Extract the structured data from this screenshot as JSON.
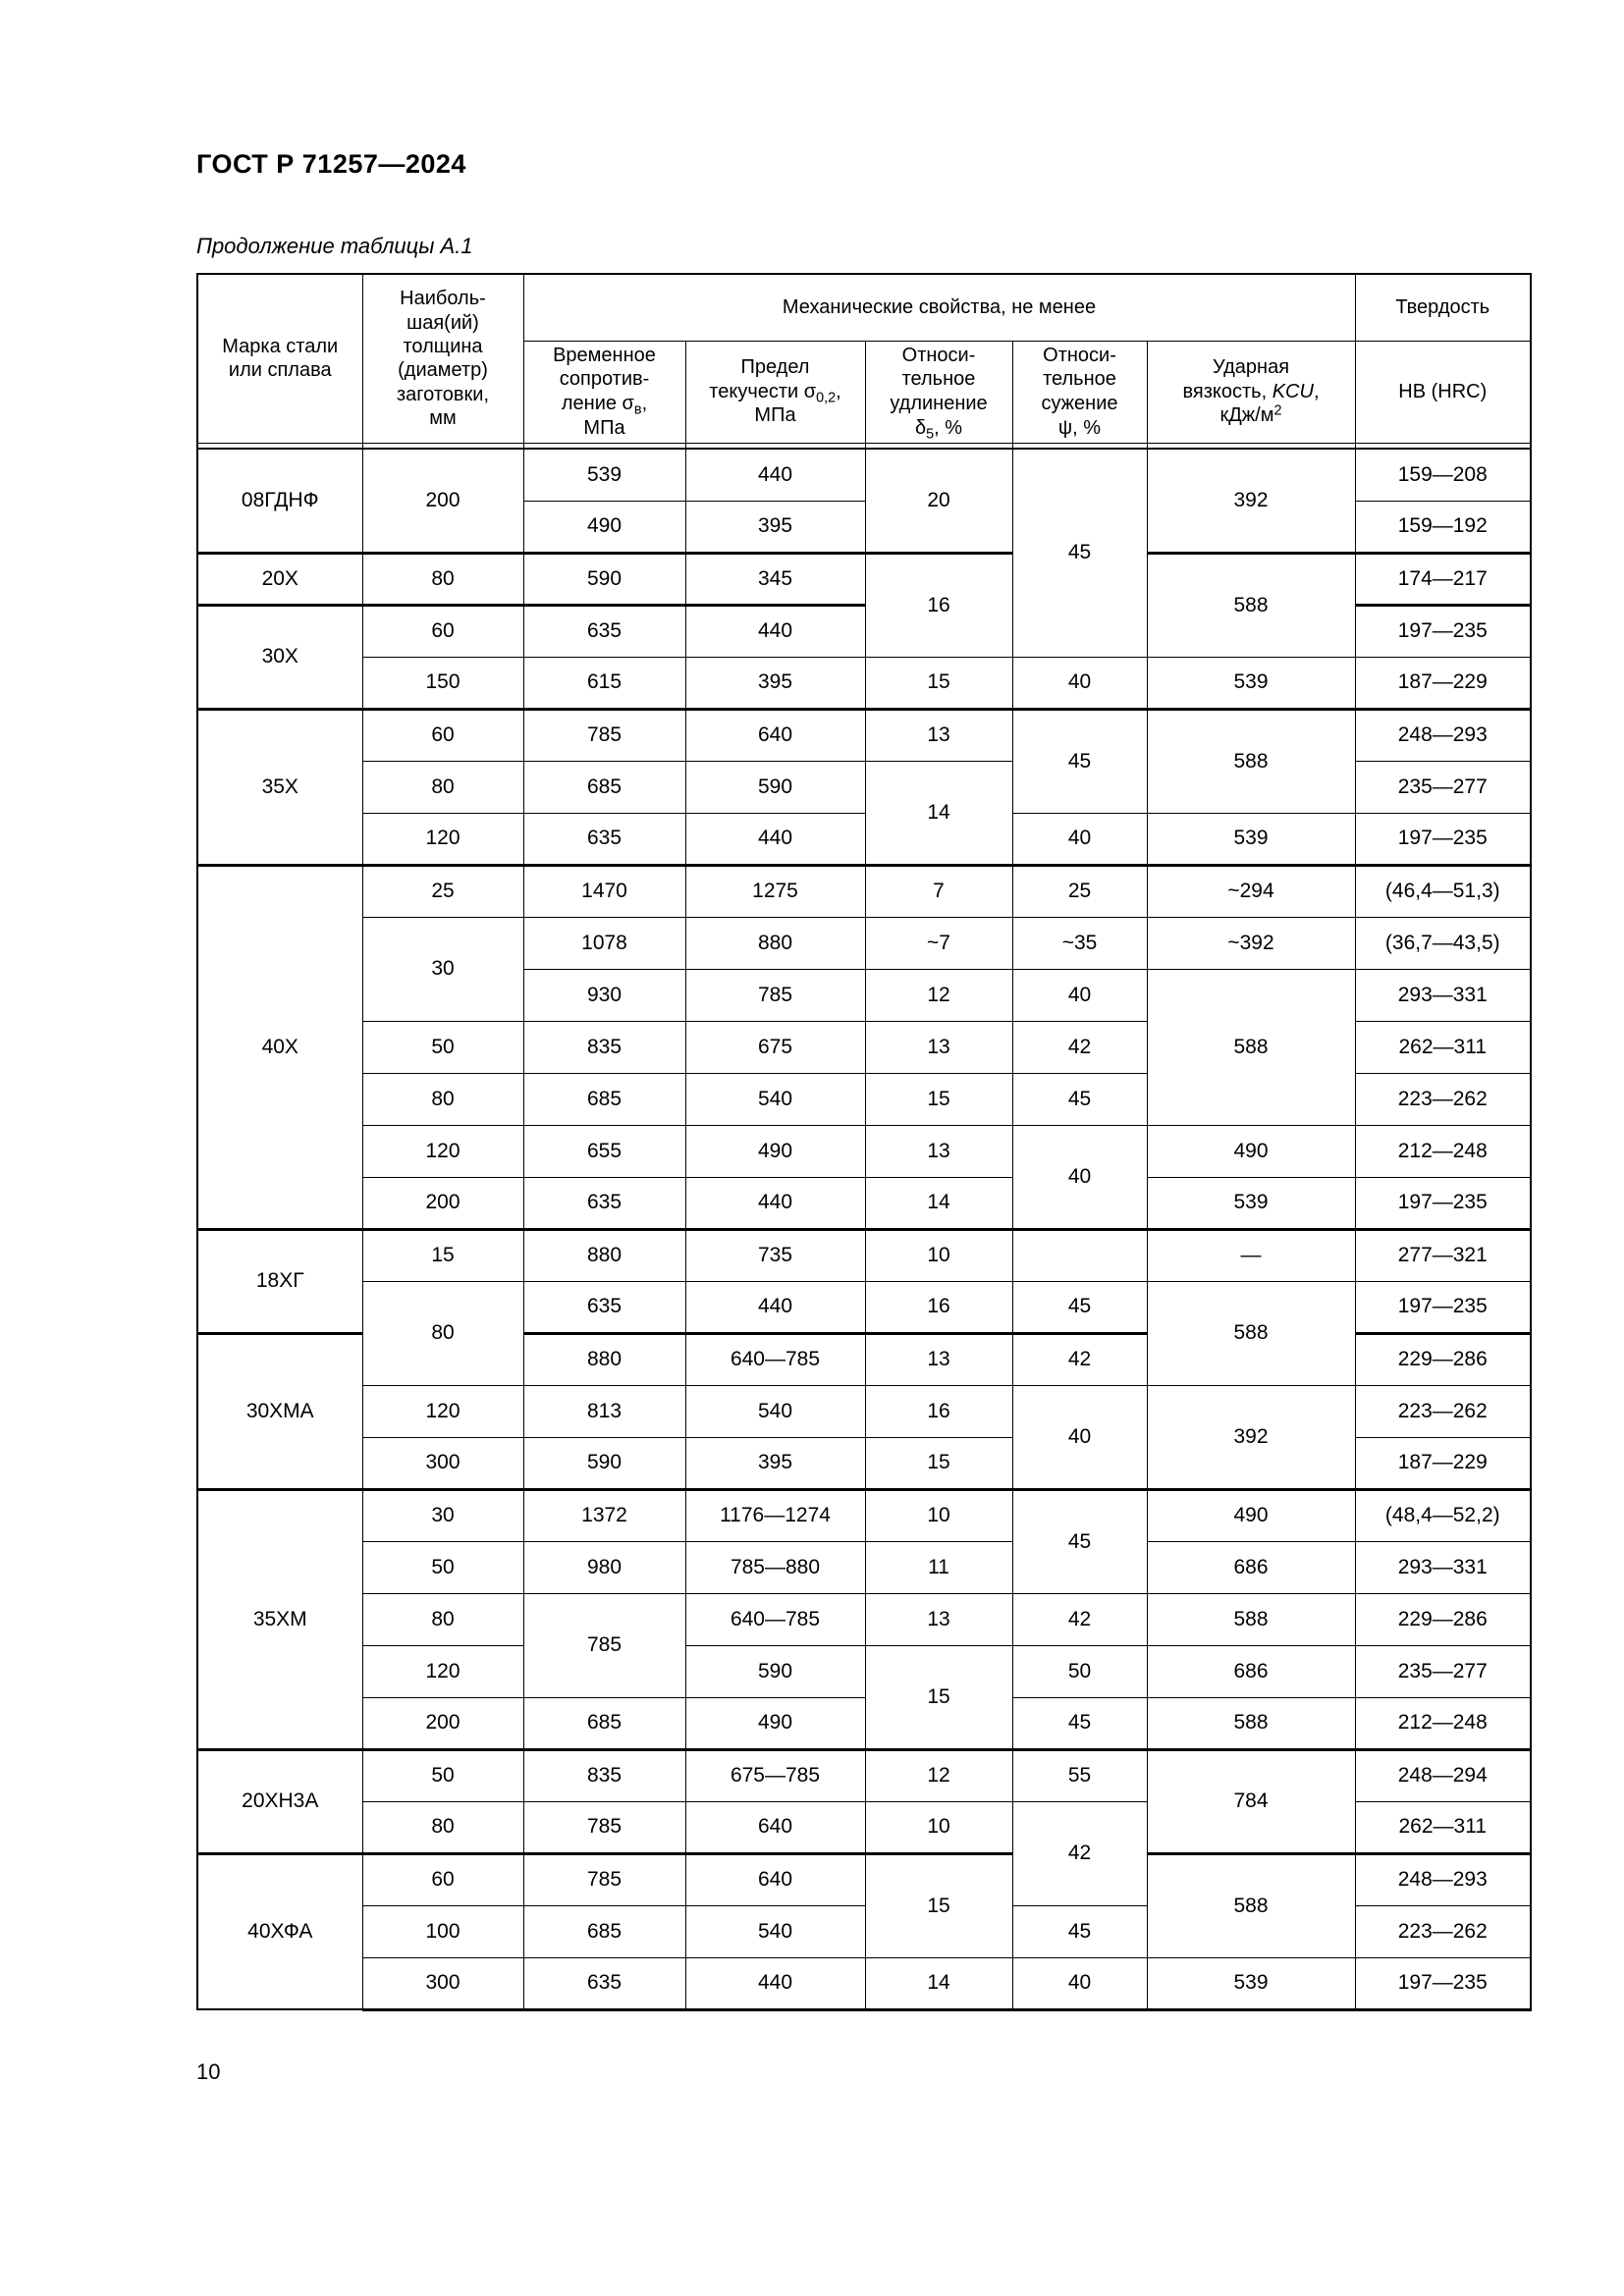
{
  "doc": {
    "title": "ГОСТ Р 71257—2024",
    "caption": "Продолжение таблицы А.1",
    "page_number": "10"
  },
  "header": {
    "col_marka": "Марка стали\nили сплава",
    "col_thickness": "Наиболь-\nшая(ий)\nтолщина\n(диаметр)\nзаготовки,\nмм",
    "mech_props": "Механические свойства, не менее",
    "hardness": "Твердость",
    "sigma_v": {
      "t1": "Временное\nсопротив-\nление σ",
      "sub": "в",
      "t2": ",\nМПа"
    },
    "sigma_02": {
      "t1": "Предел\nтекучести σ",
      "sub": "0,2",
      "t2": ",\nМПа"
    },
    "delta": {
      "t1": "Относи-\nтельное\nудлинение\nδ",
      "sub": "5",
      "t2": ", %"
    },
    "psi": {
      "t1": "Относи-\nтельное\nсужение\nψ, %"
    },
    "kcu": {
      "t1": "Ударная\nвязкость, ",
      "it": "KCU",
      "t2": ",\nкДж/м",
      "sup": "2"
    },
    "hb": "НВ (HRC)"
  },
  "table": {
    "rows": [
      {
        "cells": [
          {
            "v": "08ГДНФ",
            "rs": 2
          },
          {
            "v": "200",
            "rs": 2
          },
          {
            "v": "539"
          },
          {
            "v": "440"
          },
          {
            "v": "20",
            "rs": 2
          },
          {
            "v": "45",
            "rs": 4
          },
          {
            "v": "392",
            "rs": 2
          },
          {
            "v": "159—208"
          }
        ]
      },
      {
        "cells": [
          {
            "v": "490"
          },
          {
            "v": "395"
          },
          {
            "v": "159—192"
          }
        ]
      },
      {
        "sep": true,
        "cells": [
          {
            "v": "20Х"
          },
          {
            "v": "80"
          },
          {
            "v": "590"
          },
          {
            "v": "345"
          },
          {
            "v": "16",
            "rs": 2
          },
          {
            "v": "588",
            "rs": 2
          },
          {
            "v": "174—217"
          }
        ]
      },
      {
        "sep": true,
        "cells": [
          {
            "v": "30Х",
            "rs": 2
          },
          {
            "v": "60"
          },
          {
            "v": "635"
          },
          {
            "v": "440"
          },
          {
            "v": "197—235"
          }
        ]
      },
      {
        "cells": [
          {
            "v": "150"
          },
          {
            "v": "615"
          },
          {
            "v": "395"
          },
          {
            "v": "15"
          },
          {
            "v": "40"
          },
          {
            "v": "539"
          },
          {
            "v": "187—229"
          }
        ]
      },
      {
        "sep": true,
        "cells": [
          {
            "v": "35Х",
            "rs": 3
          },
          {
            "v": "60"
          },
          {
            "v": "785"
          },
          {
            "v": "640"
          },
          {
            "v": "13"
          },
          {
            "v": "45",
            "rs": 2
          },
          {
            "v": "588",
            "rs": 2
          },
          {
            "v": "248—293"
          }
        ]
      },
      {
        "cells": [
          {
            "v": "80"
          },
          {
            "v": "685"
          },
          {
            "v": "590"
          },
          {
            "v": "14",
            "rs": 2
          },
          {
            "v": "235—277"
          }
        ]
      },
      {
        "cells": [
          {
            "v": "120"
          },
          {
            "v": "635"
          },
          {
            "v": "440"
          },
          {
            "v": "40"
          },
          {
            "v": "539"
          },
          {
            "v": "197—235"
          }
        ]
      },
      {
        "sep": true,
        "cells": [
          {
            "v": "40Х",
            "rs": 7
          },
          {
            "v": "25"
          },
          {
            "v": "1470"
          },
          {
            "v": "1275"
          },
          {
            "v": "7"
          },
          {
            "v": "25"
          },
          {
            "v": "~294"
          },
          {
            "v": "(46,4—51,3)"
          }
        ]
      },
      {
        "cells": [
          {
            "v": "30",
            "rs": 2
          },
          {
            "v": "1078"
          },
          {
            "v": "880"
          },
          {
            "v": "~7"
          },
          {
            "v": "~35"
          },
          {
            "v": "~392"
          },
          {
            "v": "(36,7—43,5)"
          }
        ]
      },
      {
        "cells": [
          {
            "v": "930"
          },
          {
            "v": "785"
          },
          {
            "v": "12"
          },
          {
            "v": "40"
          },
          {
            "v": "588",
            "rs": 3
          },
          {
            "v": "293—331"
          }
        ]
      },
      {
        "cells": [
          {
            "v": "50"
          },
          {
            "v": "835"
          },
          {
            "v": "675"
          },
          {
            "v": "13"
          },
          {
            "v": "42"
          },
          {
            "v": "262—311"
          }
        ]
      },
      {
        "cells": [
          {
            "v": "80"
          },
          {
            "v": "685"
          },
          {
            "v": "540"
          },
          {
            "v": "15"
          },
          {
            "v": "45"
          },
          {
            "v": "223—262"
          }
        ]
      },
      {
        "cells": [
          {
            "v": "120"
          },
          {
            "v": "655"
          },
          {
            "v": "490"
          },
          {
            "v": "13"
          },
          {
            "v": "40",
            "rs": 2
          },
          {
            "v": "490"
          },
          {
            "v": "212—248"
          }
        ]
      },
      {
        "cells": [
          {
            "v": "200"
          },
          {
            "v": "635"
          },
          {
            "v": "440"
          },
          {
            "v": "14"
          },
          {
            "v": "539"
          },
          {
            "v": "197—235"
          }
        ]
      },
      {
        "sep": true,
        "cells": [
          {
            "v": "18ХГ",
            "rs": 2
          },
          {
            "v": "15"
          },
          {
            "v": "880"
          },
          {
            "v": "735"
          },
          {
            "v": "10"
          },
          {
            "v": ""
          },
          {
            "v": "—"
          },
          {
            "v": "277—321"
          }
        ]
      },
      {
        "cells": [
          {
            "v": "80",
            "rs": 2
          },
          {
            "v": "635"
          },
          {
            "v": "440"
          },
          {
            "v": "16"
          },
          {
            "v": "45"
          },
          {
            "v": "588",
            "rs": 2
          },
          {
            "v": "197—235"
          }
        ]
      },
      {
        "sep": true,
        "cells": [
          {
            "v": "30ХМА",
            "rs": 3
          },
          {
            "v": "880"
          },
          {
            "v": "640—785"
          },
          {
            "v": "13"
          },
          {
            "v": "42"
          },
          {
            "v": "229—286"
          }
        ]
      },
      {
        "cells": [
          {
            "v": "120"
          },
          {
            "v": "813"
          },
          {
            "v": "540"
          },
          {
            "v": "16"
          },
          {
            "v": "40",
            "rs": 2
          },
          {
            "v": "392",
            "rs": 2
          },
          {
            "v": "223—262"
          }
        ]
      },
      {
        "cells": [
          {
            "v": "300"
          },
          {
            "v": "590"
          },
          {
            "v": "395"
          },
          {
            "v": "15"
          },
          {
            "v": "187—229"
          }
        ]
      },
      {
        "sep": true,
        "cells": [
          {
            "v": "35ХМ",
            "rs": 5
          },
          {
            "v": "30"
          },
          {
            "v": "1372"
          },
          {
            "v": "1176—1274"
          },
          {
            "v": "10"
          },
          {
            "v": "45",
            "rs": 2
          },
          {
            "v": "490"
          },
          {
            "v": "(48,4—52,2)"
          }
        ]
      },
      {
        "cells": [
          {
            "v": "50"
          },
          {
            "v": "980"
          },
          {
            "v": "785—880"
          },
          {
            "v": "11"
          },
          {
            "v": "686"
          },
          {
            "v": "293—331"
          }
        ]
      },
      {
        "cells": [
          {
            "v": "80"
          },
          {
            "v": "785",
            "rs": 2
          },
          {
            "v": "640—785"
          },
          {
            "v": "13"
          },
          {
            "v": "42"
          },
          {
            "v": "588"
          },
          {
            "v": "229—286"
          }
        ]
      },
      {
        "cells": [
          {
            "v": "120"
          },
          {
            "v": "590"
          },
          {
            "v": "15",
            "rs": 2
          },
          {
            "v": "50"
          },
          {
            "v": "686"
          },
          {
            "v": "235—277"
          }
        ]
      },
      {
        "cells": [
          {
            "v": "200"
          },
          {
            "v": "685"
          },
          {
            "v": "490"
          },
          {
            "v": "45"
          },
          {
            "v": "588"
          },
          {
            "v": "212—248"
          }
        ]
      },
      {
        "sep": true,
        "cells": [
          {
            "v": "20ХН3А",
            "rs": 2
          },
          {
            "v": "50"
          },
          {
            "v": "835"
          },
          {
            "v": "675—785"
          },
          {
            "v": "12"
          },
          {
            "v": "55"
          },
          {
            "v": "784",
            "rs": 2
          },
          {
            "v": "248—294"
          }
        ]
      },
      {
        "cells": [
          {
            "v": "80"
          },
          {
            "v": "785"
          },
          {
            "v": "640"
          },
          {
            "v": "10"
          },
          {
            "v": "42",
            "rs": 2
          },
          {
            "v": "262—311"
          }
        ]
      },
      {
        "sep": true,
        "cells": [
          {
            "v": "40ХФА",
            "rs": 3
          },
          {
            "v": "60"
          },
          {
            "v": "785"
          },
          {
            "v": "640"
          },
          {
            "v": "15",
            "rs": 2
          },
          {
            "v": "588",
            "rs": 2
          },
          {
            "v": "248—293"
          }
        ]
      },
      {
        "cells": [
          {
            "v": "100"
          },
          {
            "v": "685"
          },
          {
            "v": "540"
          },
          {
            "v": "45"
          },
          {
            "v": "223—262"
          }
        ]
      },
      {
        "cells": [
          {
            "v": "300"
          },
          {
            "v": "635"
          },
          {
            "v": "440"
          },
          {
            "v": "14"
          },
          {
            "v": "40"
          },
          {
            "v": "539"
          },
          {
            "v": "197—235"
          }
        ]
      }
    ]
  }
}
